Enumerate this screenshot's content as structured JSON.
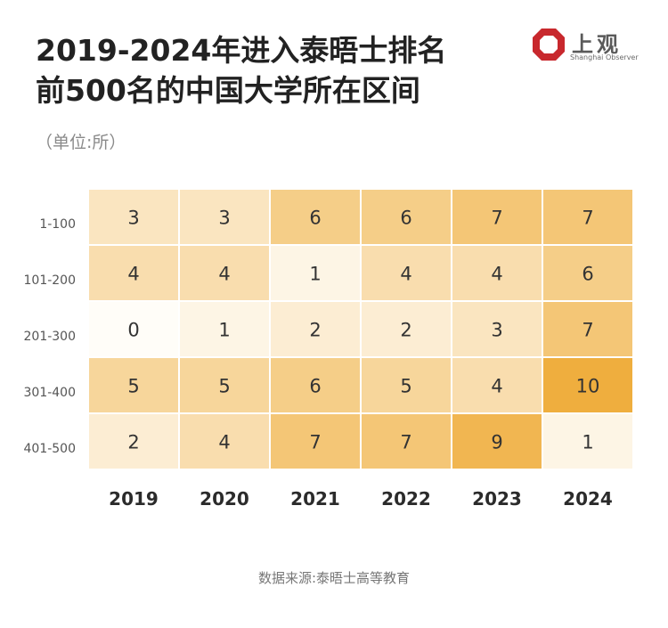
{
  "header": {
    "title_line1": "2019-2024年进入泰晤士排名",
    "title_line2": "前500名的中国大学所在区间",
    "unit": "（单位:所）"
  },
  "logo": {
    "name_cn": "上观",
    "name_en": "Shanghai Observer",
    "color": "#c8282d"
  },
  "chart_data": {
    "type": "heatmap",
    "title": "2019-2024年进入泰晤士排名前500名的中国大学所在区间",
    "unit": "（单位:所）",
    "x": [
      "2019",
      "2020",
      "2021",
      "2022",
      "2023",
      "2024"
    ],
    "y": [
      "1-100",
      "101-200",
      "201-300",
      "301-400",
      "401-500"
    ],
    "values": [
      [
        3,
        3,
        6,
        6,
        7,
        7
      ],
      [
        4,
        4,
        1,
        4,
        4,
        6
      ],
      [
        0,
        1,
        2,
        2,
        3,
        7
      ],
      [
        5,
        5,
        6,
        5,
        4,
        10
      ],
      [
        2,
        4,
        7,
        7,
        9,
        1
      ]
    ],
    "color_low": "#fffdf8",
    "color_high": "#efae3e"
  },
  "footer": {
    "source": "数据来源:泰晤士高等教育"
  }
}
